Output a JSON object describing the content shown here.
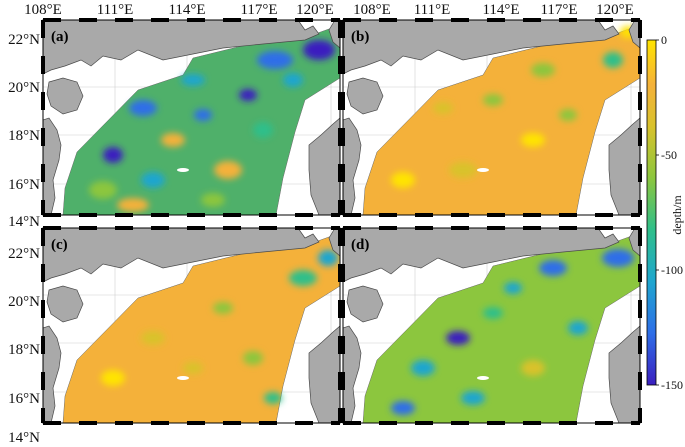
{
  "map": {
    "lon_ticks": [
      "108°E",
      "111°E",
      "114°E",
      "117°E",
      "120°E"
    ],
    "lat_ticks": [
      "22°N",
      "20°N",
      "18°N",
      "16°N",
      "14°N"
    ],
    "panels": [
      {
        "label": "(a)",
        "level": 0.45
      },
      {
        "label": "(b)",
        "level": 0.82
      },
      {
        "label": "(c)",
        "level": 0.85
      },
      {
        "label": "(d)",
        "level": 0.55
      }
    ]
  },
  "colorbar": {
    "title": "depth/m",
    "ticks": [
      {
        "value": 0,
        "label": "0"
      },
      {
        "value": -50,
        "label": "-50"
      },
      {
        "value": -100,
        "label": "-100"
      },
      {
        "value": -150,
        "label": "-150"
      }
    ],
    "range": [
      -150,
      0
    ],
    "colors": [
      "#3b1fbf",
      "#2e6ee8",
      "#1fa6cf",
      "#2fbf8a",
      "#8cc63e",
      "#d9c22c",
      "#f4b13a",
      "#ffe400"
    ]
  },
  "colors": {
    "land": "#a9a9a9",
    "land_edge": "#4a4a4a",
    "grid": "#d0d0d0"
  }
}
